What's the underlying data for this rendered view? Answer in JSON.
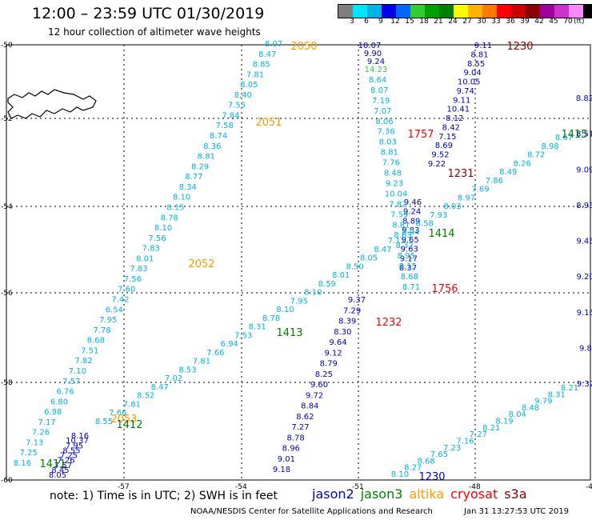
{
  "header": {
    "title": "12:00 – 23:59 UTC 01/30/2019",
    "subtitle": "12 hour collection of altimeter wave heights"
  },
  "legend": {
    "colors": [
      "#7f7f7f",
      "#00e5ff",
      "#00b3e6",
      "#0000e6",
      "#0066ff",
      "#33cc33",
      "#00a000",
      "#008000",
      "#ffff00",
      "#ffb400",
      "#ff7800",
      "#ff0000",
      "#c80000",
      "#8b0000",
      "#a000a0",
      "#cc33cc",
      "#ff88ff",
      "#000000"
    ],
    "labels": [
      "3",
      "6",
      "9",
      "12",
      "15",
      "18",
      "21",
      "24",
      "27",
      "30",
      "33",
      "36",
      "39",
      "42",
      "45",
      "70"
    ],
    "unit": "(ft)"
  },
  "map": {
    "lon_ticks": [
      "-57",
      "-54",
      "-51",
      "-48",
      "-45"
    ],
    "lat_ticks": [
      "-50",
      "-52",
      "-54",
      "-56",
      "-58",
      "-60"
    ],
    "tracks": [
      {
        "sat": "jason2",
        "values": [
          "9.18",
          "9.01",
          "8.96",
          "8.78",
          "7.27",
          "8.62",
          "8.84",
          "9.72",
          "9.60",
          "8.25",
          "8.79",
          "9.12",
          "9.64",
          "8.30",
          "8.39",
          "7.29",
          "9.37"
        ]
      },
      {
        "sat": "jason2",
        "values": [
          "8.05",
          "8.45",
          "7.57",
          "7.26",
          "7.25",
          "8.55",
          "7.95",
          "10.37",
          "8.16"
        ]
      },
      {
        "sat": "jason2",
        "values": [
          "10.07",
          "9.90",
          "9.24"
        ]
      },
      {
        "sat": "jason2",
        "values": [
          "9.11",
          "8.81",
          "8.55",
          "9.04",
          "10.05",
          "9.74",
          "9.11",
          "10.41",
          "8.12",
          "8.42",
          "7.15",
          "8.69",
          "9.52",
          "9.22"
        ]
      },
      {
        "sat": "jason2",
        "values": [
          "9.46",
          "9.24",
          "8.89",
          "9.83",
          "9.65",
          "9.63",
          "9.17",
          "8.37"
        ]
      },
      {
        "sat": "jason2",
        "values": [
          "9.32",
          "9.8",
          "9.16",
          "9.20",
          "9.45",
          "8.93",
          "9.09",
          "8.51",
          "8.82"
        ]
      },
      {
        "sat": "saral",
        "values": [
          "8.07",
          "8.47",
          "8.85",
          "7.81",
          "8.05",
          "8.40",
          "7.55",
          "7.84",
          "7.58",
          "8.74",
          "8.36",
          "8.81",
          "8.29",
          "8.77",
          "8.34",
          "8.10",
          "8.15",
          "8.78",
          "8.10",
          "7.56",
          "7.83",
          "8.01",
          "7.83",
          "7.56",
          "7.60",
          "7.42",
          "6.54",
          "7.95",
          "7.78",
          "8.68",
          "7.51",
          "7.82",
          "7.10",
          "7.57",
          "6.76",
          "6.80",
          "6.98",
          "7.17",
          "7.26",
          "7.13",
          "7.25",
          "8.16"
        ]
      },
      {
        "sat": "saral",
        "values": [
          "14.23",
          "8.64",
          "8.07",
          "7.19",
          "7.07",
          "8.06",
          "7.36",
          "8.03",
          "8.81",
          "7.76",
          "8.48",
          "9.23",
          "10.04",
          "7.82",
          "7.59",
          "8.81",
          "8.63",
          "8.32",
          "8.95",
          "8.15",
          "8.68",
          "8.71"
        ]
      },
      {
        "sat": "saral",
        "values": [
          "8.55",
          "7.66",
          "7.81",
          "8.52",
          "8.47",
          "7.02",
          "8.53",
          "7.81",
          "7.66",
          "6.94",
          "7.53",
          "8.31",
          "8.78",
          "8.10",
          "7.95",
          "8.10",
          "8.59",
          "8.01",
          "8.50",
          "8.05",
          "8.47",
          "7.11",
          "8.94",
          "8.58",
          "7.93",
          "8.03",
          "8.97",
          "7.69",
          "7.86",
          "8.49",
          "8.26",
          "8.72",
          "8.98",
          "8.67"
        ]
      },
      {
        "sat": "saral",
        "values": [
          "8.10",
          "8.27",
          "8.68",
          "7.65",
          "7.23",
          "7.16",
          "7.27",
          "8.21",
          "8.19",
          "8.04",
          "8.48",
          "9.79",
          "8.31",
          "8.21"
        ]
      }
    ],
    "labels": [
      {
        "text": "2050",
        "sat": "altika"
      },
      {
        "text": "2051",
        "sat": "altika"
      },
      {
        "text": "2052",
        "sat": "altika"
      },
      {
        "text": "2053",
        "sat": "altika"
      },
      {
        "text": "1230",
        "sat": "cryosat"
      },
      {
        "text": "1757",
        "sat": "cryosat"
      },
      {
        "text": "1231",
        "sat": "cryosat"
      },
      {
        "text": "1232",
        "sat": "cryosat"
      },
      {
        "text": "1756",
        "sat": "cryosat"
      },
      {
        "text": "1414",
        "sat": "jason3"
      },
      {
        "text": "1413",
        "sat": "jason3"
      },
      {
        "text": "1412",
        "sat": "jason3"
      },
      {
        "text": "1411",
        "sat": "jason3"
      },
      {
        "text": "1415",
        "sat": "jason3"
      },
      {
        "text": "1230",
        "sat": "jason2"
      }
    ]
  },
  "footer": {
    "note": "note:  1) Time is in UTC;  2) SWH is in feet",
    "satellites": [
      {
        "name": "jason2",
        "color": "#0000cc"
      },
      {
        "name": "jason3",
        "color": "#008000"
      },
      {
        "name": "altika",
        "color": "#ff9900"
      },
      {
        "name": "cryosat",
        "color": "#ff0000"
      },
      {
        "name": "s3a",
        "color": "#8b0000"
      }
    ],
    "credits": "NOAA/NESDIS Center for Satellite Applications and Research",
    "timestamp": "Jan 31 13:27:53 UTC 2019"
  }
}
